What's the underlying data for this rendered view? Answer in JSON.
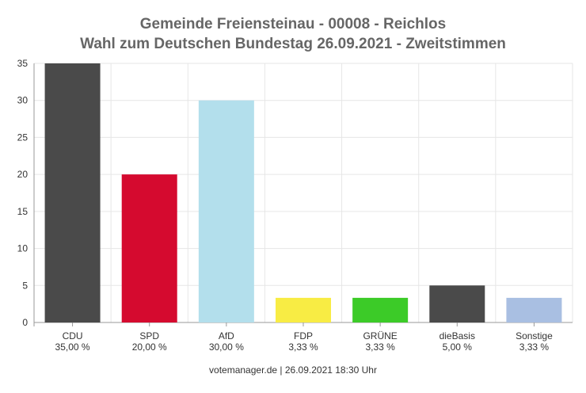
{
  "chart_data": {
    "type": "bar",
    "title": "Gemeinde Freiensteinau - 00008 - Reichlos",
    "subtitle": "Wahl zum Deutschen Bundestag 26.09.2021  - Zweitstimmen",
    "categories": [
      "CDU",
      "SPD",
      "AfD",
      "FDP",
      "GRÜNE",
      "dieBasis",
      "Sonstige"
    ],
    "percent_labels": [
      "35,00 %",
      "20,00 %",
      "30,00 %",
      "3,33 %",
      "3,33 %",
      "5,00 %",
      "3,33 %"
    ],
    "values": [
      35,
      20,
      30,
      3.33,
      3.33,
      5,
      3.33
    ],
    "colors": [
      "#4a4a4a",
      "#d50a2f",
      "#b3dfec",
      "#f8ec44",
      "#3ccb28",
      "#4a4a4a",
      "#a9bfe2"
    ],
    "ylim": [
      0,
      35
    ],
    "yticks": [
      0,
      5,
      10,
      15,
      20,
      25,
      30,
      35
    ],
    "grid": true,
    "legend": "none",
    "footer": "votemanager.de | 26.09.2021 18:30 Uhr"
  }
}
